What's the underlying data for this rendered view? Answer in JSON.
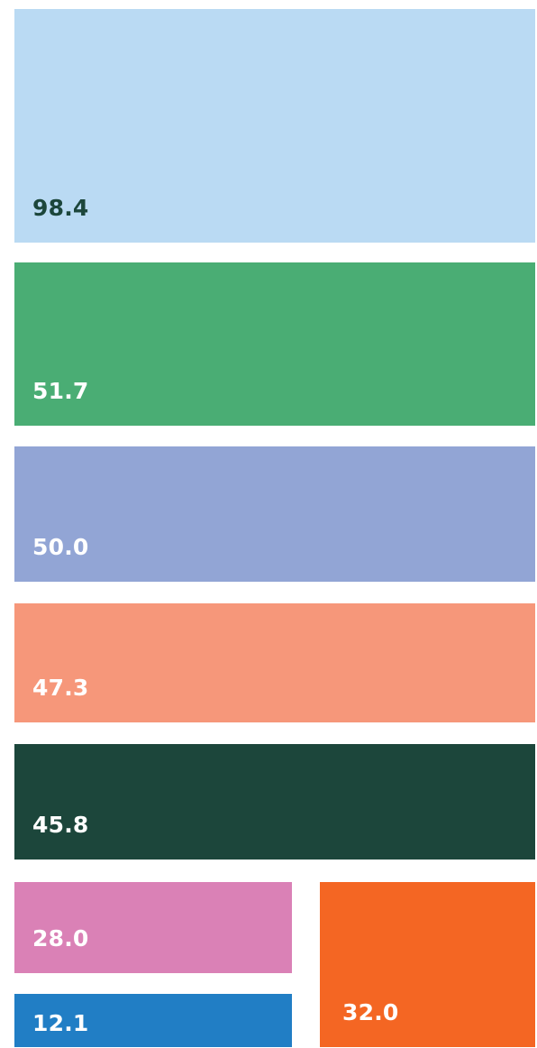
{
  "chart_data": {
    "type": "treemap",
    "title": "",
    "legend": "none",
    "grid": false,
    "items": [
      {
        "value": 98.4,
        "label": "98.4",
        "color": "#badaf3",
        "text_color": "#1c463b"
      },
      {
        "value": 51.7,
        "label": "51.7",
        "color": "#4aad74",
        "text_color": "#ffffff"
      },
      {
        "value": 50.0,
        "label": "50.0",
        "color": "#92a5d5",
        "text_color": "#ffffff"
      },
      {
        "value": 47.3,
        "label": "47.3",
        "color": "#f6977a",
        "text_color": "#ffffff"
      },
      {
        "value": 45.8,
        "label": "45.8",
        "color": "#1c463b",
        "text_color": "#ffffff"
      },
      {
        "value": 28.0,
        "label": "28.0",
        "color": "#da81b6",
        "text_color": "#ffffff"
      },
      {
        "value": 12.1,
        "label": "12.1",
        "color": "#217ec5",
        "text_color": "#ffffff"
      },
      {
        "value": 32.0,
        "label": "32.0",
        "color": "#f46623",
        "text_color": "#ffffff"
      }
    ]
  }
}
